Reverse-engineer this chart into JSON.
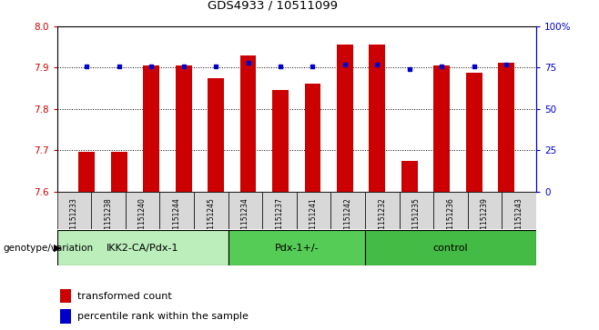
{
  "title": "GDS4933 / 10511099",
  "samples": [
    "GSM1151233",
    "GSM1151238",
    "GSM1151240",
    "GSM1151244",
    "GSM1151245",
    "GSM1151234",
    "GSM1151237",
    "GSM1151241",
    "GSM1151242",
    "GSM1151232",
    "GSM1151235",
    "GSM1151236",
    "GSM1151239",
    "GSM1151243"
  ],
  "bar_values": [
    7.695,
    7.695,
    7.905,
    7.905,
    7.875,
    7.93,
    7.845,
    7.862,
    7.955,
    7.955,
    7.675,
    7.905,
    7.887,
    7.912
  ],
  "percentile_values": [
    76,
    76,
    76,
    76,
    76,
    78,
    76,
    76,
    77,
    77,
    74,
    76,
    76,
    77
  ],
  "groups": [
    {
      "label": "IKK2-CA/Pdx-1",
      "start": 0,
      "end": 5,
      "color": "#bbeebb"
    },
    {
      "label": "Pdx-1+/-",
      "start": 5,
      "end": 9,
      "color": "#55cc55"
    },
    {
      "label": "control",
      "start": 9,
      "end": 14,
      "color": "#44bb44"
    }
  ],
  "ylim": [
    7.6,
    8.0
  ],
  "yticks": [
    7.6,
    7.7,
    7.8,
    7.9,
    8.0
  ],
  "y2lim": [
    0,
    100
  ],
  "y2ticks": [
    0,
    25,
    50,
    75,
    100
  ],
  "y2ticklabels": [
    "0",
    "25",
    "50",
    "75",
    "100%"
  ],
  "bar_color": "#cc0000",
  "dot_color": "#0000cc",
  "legend_items": [
    {
      "color": "#cc0000",
      "label": "transformed count"
    },
    {
      "color": "#0000cc",
      "label": "percentile rank within the sample"
    }
  ]
}
